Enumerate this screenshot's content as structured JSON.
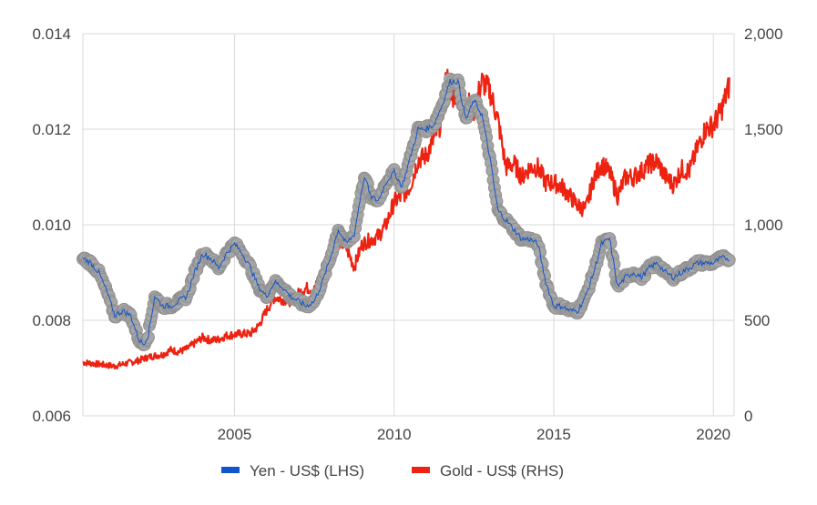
{
  "chart_data": {
    "type": "line",
    "title": "",
    "xlabel": "",
    "ylabel_left": "",
    "ylabel_right": "",
    "x_range": [
      2000.25,
      2020.65
    ],
    "x_ticks": [
      2005,
      2010,
      2015,
      2020
    ],
    "x_tick_labels": [
      "2005",
      "2010",
      "2015",
      "2020"
    ],
    "y_left": {
      "range": [
        0.006,
        0.014
      ],
      "ticks": [
        0.006,
        0.008,
        0.01,
        0.012,
        0.014
      ],
      "tick_labels": [
        "0.006",
        "0.008",
        "0.010",
        "0.012",
        "0.014"
      ]
    },
    "y_right": {
      "range": [
        0,
        2000
      ],
      "ticks": [
        0,
        500,
        1000,
        1500,
        2000
      ],
      "tick_labels": [
        "0",
        "500",
        "1,000",
        "1,500",
        "2,000"
      ]
    },
    "grid": true,
    "legend_position": "bottom",
    "series": [
      {
        "name": "Yen - US$ (LHS)",
        "axis": "left",
        "color": "#1155cc",
        "marker_color": "#9e9e9e",
        "x": [
          2000.25,
          2000.5,
          2000.75,
          2001.0,
          2001.25,
          2001.5,
          2001.75,
          2002.0,
          2002.15,
          2002.3,
          2002.5,
          2002.75,
          2003.0,
          2003.25,
          2003.5,
          2003.75,
          2004.0,
          2004.25,
          2004.5,
          2004.75,
          2005.0,
          2005.25,
          2005.5,
          2005.75,
          2006.0,
          2006.25,
          2006.5,
          2006.75,
          2007.0,
          2007.25,
          2007.5,
          2007.75,
          2008.0,
          2008.25,
          2008.5,
          2008.75,
          2009.0,
          2009.1,
          2009.25,
          2009.5,
          2009.75,
          2010.0,
          2010.25,
          2010.5,
          2010.75,
          2011.0,
          2011.25,
          2011.5,
          2011.75,
          2012.0,
          2012.25,
          2012.5,
          2012.75,
          2013.0,
          2013.25,
          2013.5,
          2013.75,
          2014.0,
          2014.25,
          2014.5,
          2014.75,
          2015.0,
          2015.25,
          2015.5,
          2015.75,
          2016.0,
          2016.25,
          2016.5,
          2016.75,
          2017.0,
          2017.25,
          2017.5,
          2017.75,
          2018.0,
          2018.25,
          2018.5,
          2018.75,
          2019.0,
          2019.25,
          2019.5,
          2019.75,
          2020.0,
          2020.25,
          2020.5
        ],
        "values": [
          0.0093,
          0.0092,
          0.009,
          0.0086,
          0.0081,
          0.0082,
          0.0081,
          0.0076,
          0.0075,
          0.0077,
          0.0085,
          0.0083,
          0.0083,
          0.0084,
          0.0085,
          0.009,
          0.0094,
          0.0093,
          0.0091,
          0.0094,
          0.0096,
          0.0094,
          0.0091,
          0.0087,
          0.0085,
          0.0088,
          0.0087,
          0.0085,
          0.0084,
          0.0083,
          0.0084,
          0.0088,
          0.0093,
          0.0099,
          0.0096,
          0.0098,
          0.0108,
          0.011,
          0.0106,
          0.0105,
          0.0109,
          0.0111,
          0.0108,
          0.0114,
          0.012,
          0.012,
          0.0121,
          0.0125,
          0.013,
          0.013,
          0.0122,
          0.0126,
          0.0123,
          0.0114,
          0.0103,
          0.0101,
          0.0099,
          0.0097,
          0.0097,
          0.0096,
          0.0088,
          0.0083,
          0.0083,
          0.0082,
          0.0082,
          0.0085,
          0.009,
          0.0096,
          0.0097,
          0.0087,
          0.0089,
          0.009,
          0.0089,
          0.0091,
          0.0092,
          0.009,
          0.0089,
          0.009,
          0.0091,
          0.0092,
          0.0092,
          0.0092,
          0.0093,
          0.0093
        ]
      },
      {
        "name": "Gold - US$ (RHS)",
        "axis": "right",
        "color": "#ee2211",
        "x": [
          2000.25,
          2000.5,
          2000.75,
          2001.0,
          2001.25,
          2001.5,
          2001.75,
          2002.0,
          2002.25,
          2002.5,
          2002.75,
          2003.0,
          2003.25,
          2003.5,
          2003.75,
          2004.0,
          2004.25,
          2004.5,
          2004.75,
          2005.0,
          2005.25,
          2005.5,
          2005.75,
          2006.0,
          2006.25,
          2006.5,
          2006.75,
          2007.0,
          2007.25,
          2007.5,
          2007.75,
          2008.0,
          2008.25,
          2008.5,
          2008.75,
          2009.0,
          2009.25,
          2009.5,
          2009.75,
          2010.0,
          2010.25,
          2010.5,
          2010.75,
          2011.0,
          2011.25,
          2011.5,
          2011.65,
          2011.75,
          2012.0,
          2012.25,
          2012.5,
          2012.75,
          2013.0,
          2013.25,
          2013.5,
          2013.75,
          2014.0,
          2014.25,
          2014.5,
          2014.75,
          2015.0,
          2015.25,
          2015.5,
          2015.75,
          2016.0,
          2016.25,
          2016.5,
          2016.75,
          2017.0,
          2017.25,
          2017.5,
          2017.75,
          2018.0,
          2018.25,
          2018.5,
          2018.75,
          2019.0,
          2019.25,
          2019.5,
          2019.75,
          2020.0,
          2020.25,
          2020.5
        ],
        "values": [
          280,
          275,
          270,
          265,
          260,
          270,
          280,
          290,
          305,
          315,
          320,
          345,
          335,
          350,
          380,
          410,
          395,
          400,
          420,
          425,
          430,
          430,
          470,
          550,
          620,
          610,
          600,
          640,
          670,
          660,
          750,
          880,
          920,
          880,
          780,
          900,
          920,
          940,
          1000,
          1120,
          1150,
          1200,
          1340,
          1360,
          1450,
          1550,
          1800,
          1650,
          1700,
          1650,
          1600,
          1750,
          1700,
          1550,
          1300,
          1320,
          1250,
          1300,
          1300,
          1220,
          1220,
          1200,
          1150,
          1100,
          1080,
          1240,
          1320,
          1270,
          1150,
          1250,
          1250,
          1280,
          1320,
          1330,
          1250,
          1210,
          1290,
          1280,
          1400,
          1500,
          1520,
          1600,
          1730
        ]
      }
    ]
  }
}
